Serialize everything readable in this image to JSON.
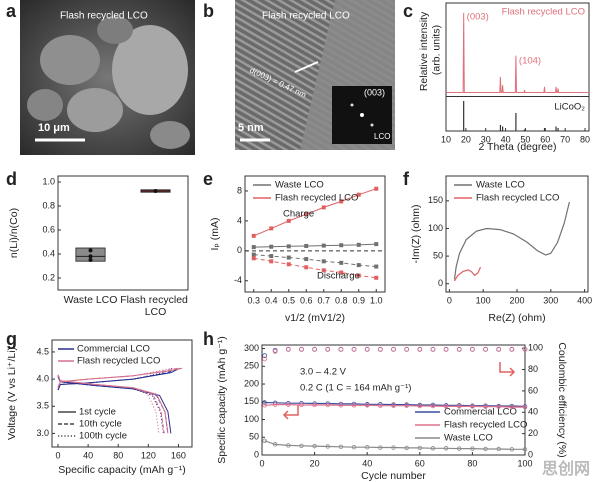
{
  "panel_labels": [
    "a",
    "b",
    "c",
    "d",
    "e",
    "f",
    "g",
    "h"
  ],
  "images": [
    {
      "caption": "Flash recycled LCO",
      "scale_bar": "10 μm"
    },
    {
      "caption": "Flash recycled LCO",
      "annotation": "d(003) = 0.47 nm",
      "inset_label": "(003)",
      "inset_caption": "LCO",
      "scale_bar": "5 nm"
    }
  ],
  "watermark": "思创网",
  "chart_data": [
    {
      "type": "spectrum",
      "xlabel": "2 Theta (degree)",
      "ylabel": "Relative intensity (arb. units)",
      "x": [
        10,
        18.6,
        18.9,
        19.2,
        37.1,
        37.4,
        37.7,
        38.2,
        38.5,
        38.8,
        44.9,
        45.2,
        45.5,
        49.2,
        49.5,
        49.8,
        59.3,
        59.6,
        59.9,
        65.1,
        65.4,
        65.7,
        66.1,
        66.4,
        66.7,
        82
      ],
      "series": [
        {
          "name": "Flash recycled LCO",
          "color": "#e0707a",
          "values": [
            0.03,
            0.03,
            1.0,
            0.03,
            0.03,
            0.22,
            0.03,
            0.03,
            0.12,
            0.03,
            0.03,
            0.48,
            0.03,
            0.03,
            0.06,
            0.03,
            0.03,
            0.1,
            0.03,
            0.03,
            0.1,
            0.03,
            0.03,
            0.08,
            0.03,
            0.03
          ]
        }
      ],
      "peak_labels": [
        {
          "label": "(003)",
          "x": 18.9
        },
        {
          "label": "(104)",
          "x": 45.2
        }
      ],
      "reference": {
        "name": "LiCoO₂",
        "color": "#333333",
        "x": [
          18.9,
          37.4,
          38.5,
          45.2,
          49.5,
          59.6,
          65.4,
          66.4
        ],
        "values": [
          1.0,
          0.2,
          0.15,
          0.6,
          0.05,
          0.1,
          0.15,
          0.1
        ],
        "ylim": [
          0,
          1.1
        ]
      },
      "xlim": [
        10,
        82
      ],
      "xticks": [
        10,
        20,
        30,
        40,
        50,
        60,
        70,
        80
      ],
      "ylim": [
        0,
        1.12
      ]
    },
    {
      "type": "box",
      "ylabel": "n(Li)/n(Co)",
      "categories": [
        "Waste LCO",
        "Flash recycled LCO"
      ],
      "boxes": [
        {
          "q1": 0.34,
          "median": 0.38,
          "q3": 0.45,
          "points": [
            0.35,
            0.38,
            0.43
          ],
          "color": "#8a8a8a"
        },
        {
          "q1": 0.915,
          "median": 0.925,
          "q3": 0.935,
          "points": [
            0.925
          ],
          "color": "#b03030"
        }
      ],
      "ylim": [
        0.1,
        1.05
      ],
      "yticks": [
        0.2,
        0.4,
        0.6,
        0.8,
        {
          "value": 1,
          "label": "1.0"
        }
      ]
    },
    {
      "type": "line",
      "xlabel": "v1/2 (mV1/2)",
      "ylabel": "Iₚ (mA)",
      "charge_label": "Charge",
      "discharge_label": "Discharge",
      "zero_line": true,
      "x": [
        0.3,
        0.4,
        0.5,
        0.6,
        0.7,
        0.8,
        0.9,
        1.0
      ],
      "series": [
        {
          "name": "Waste LCO",
          "color": "#707070",
          "charge": [
            0.5,
            0.55,
            0.6,
            0.65,
            0.7,
            0.75,
            0.8,
            0.9
          ],
          "discharge": [
            -0.5,
            -0.7,
            -0.9,
            -1.1,
            -1.4,
            -1.6,
            -1.9,
            -2.1
          ]
        },
        {
          "name": "Flash recycled LCO",
          "color": "#e06060",
          "charge": [
            2.0,
            3.0,
            4.0,
            4.9,
            5.8,
            6.6,
            7.5,
            8.3
          ],
          "discharge": [
            -1.0,
            -1.4,
            -1.8,
            -2.2,
            -2.6,
            -2.9,
            -3.3,
            -3.6
          ]
        }
      ],
      "xlim": [
        0.25,
        1.05
      ],
      "xticks": [
        0.3,
        0.4,
        0.5,
        0.6,
        0.7,
        0.8,
        0.9,
        {
          "value": 1,
          "label": "1.0"
        }
      ],
      "ylim": [
        -5.5,
        10
      ],
      "yticks": [
        -4,
        0,
        4,
        8
      ]
    },
    {
      "type": "line",
      "xlabel": "Re(Z) (ohm)",
      "ylabel": "-Im(Z) (ohm)",
      "series": [
        {
          "name": "Waste LCO",
          "color": "#707070",
          "x": [
            15,
            20,
            30,
            50,
            80,
            110,
            150,
            190,
            230,
            260,
            285,
            300,
            320,
            340,
            355
          ],
          "values": [
            8,
            30,
            55,
            80,
            95,
            100,
            98,
            90,
            75,
            60,
            52,
            55,
            75,
            110,
            148
          ]
        },
        {
          "name": "Flash recycled LCO",
          "color": "#e06060",
          "x": [
            15,
            25,
            40,
            55,
            65,
            75,
            85,
            92
          ],
          "values": [
            5,
            15,
            22,
            25,
            22,
            15,
            20,
            30
          ]
        }
      ],
      "xlim": [
        -10,
        410
      ],
      "xticks": [
        0,
        100,
        200,
        300,
        400
      ],
      "ylim": [
        -15,
        195
      ],
      "yticks": [
        0,
        50,
        100,
        150
      ]
    },
    {
      "type": "curves",
      "xlabel": "Specific capacity (mAh g⁻¹)",
      "ylabel": "Voltage (V vs Li⁺/Li)",
      "series": [
        {
          "name": "Commercial LCO",
          "color": "#2b2f8f",
          "cycles": [
            {
              "charge_x": [
                0,
                3,
                40,
                100,
                150,
                162
              ],
              "charge": [
                3.8,
                3.9,
                3.93,
                4.0,
                4.12,
                4.2
              ],
              "discharge_x": [
                0,
                3,
                50,
                100,
                135,
                146,
                150
              ],
              "discharge": [
                4.05,
                3.95,
                3.88,
                3.82,
                3.7,
                3.4,
                3.0
              ]
            },
            {
              "charge_x": [
                0,
                3,
                40,
                100,
                146,
                158
              ],
              "charge": [
                3.8,
                3.9,
                3.93,
                4.0,
                4.12,
                4.2
              ],
              "discharge_x": [
                0,
                3,
                50,
                100,
                131,
                142,
                146
              ],
              "discharge": [
                4.05,
                3.95,
                3.88,
                3.82,
                3.7,
                3.4,
                3.0
              ]
            },
            {
              "charge_x": [
                0,
                3,
                40,
                100,
                140,
                152
              ],
              "charge": [
                3.8,
                3.9,
                3.93,
                4.0,
                4.12,
                4.2
              ],
              "discharge_x": [
                0,
                3,
                50,
                100,
                125,
                136,
                140
              ],
              "discharge": [
                4.05,
                3.95,
                3.88,
                3.82,
                3.7,
                3.4,
                3.0
              ]
            }
          ]
        },
        {
          "name": "Flash recycled LCO",
          "color": "#d4708c",
          "cycles": [
            {
              "charge_x": [
                0,
                3,
                40,
                100,
                146,
                165
              ],
              "charge": [
                3.85,
                3.95,
                4.0,
                4.06,
                4.15,
                4.2
              ],
              "discharge_x": [
                0,
                3,
                50,
                100,
                131,
                142,
                146
              ],
              "discharge": [
                4.08,
                3.97,
                3.9,
                3.84,
                3.72,
                3.4,
                3.0
              ]
            },
            {
              "charge_x": [
                0,
                3,
                40,
                100,
                141,
                160
              ],
              "charge": [
                3.85,
                3.95,
                4.0,
                4.06,
                4.15,
                4.2
              ],
              "discharge_x": [
                0,
                3,
                50,
                100,
                126,
                137,
                141
              ],
              "discharge": [
                4.08,
                3.97,
                3.9,
                3.84,
                3.72,
                3.4,
                3.0
              ]
            },
            {
              "charge_x": [
                0,
                3,
                40,
                100,
                134,
                152
              ],
              "charge": [
                3.85,
                3.95,
                4.0,
                4.06,
                4.15,
                4.2
              ],
              "discharge_x": [
                0,
                3,
                50,
                100,
                119,
                130,
                134
              ],
              "discharge": [
                4.08,
                3.97,
                3.9,
                3.84,
                3.72,
                3.4,
                3.0
              ]
            }
          ]
        }
      ],
      "cycle_labels": [
        "1st cycle",
        "10th cycle",
        "100th cycle"
      ],
      "cycle_styles": [
        "solid",
        "dashed",
        "dotted"
      ],
      "xlim": [
        -8,
        178
      ],
      "xticks": [
        0,
        40,
        80,
        120,
        160
      ],
      "ylim": [
        2.75,
        4.72
      ],
      "yticks": [
        {
          "value": 3,
          "label": "3.0"
        },
        3.5,
        {
          "value": 4,
          "label": "4.0"
        },
        4.5
      ]
    },
    {
      "type": "cycling",
      "xlabel": "Cycle number",
      "ylabel": "Specific capacity (mAh g⁻¹)",
      "y2label": "Coulombic efficiency (%)",
      "annotations": [
        "3.0 – 4.2 V",
        "0.2 C (1 C = 164 mAh g⁻¹)"
      ],
      "x": [
        1,
        5,
        10,
        15,
        20,
        25,
        30,
        35,
        40,
        45,
        50,
        55,
        60,
        65,
        70,
        75,
        80,
        85,
        90,
        95,
        100
      ],
      "series": [
        {
          "name": "Commercial LCO",
          "color": "#3b4fa0",
          "values": [
            148,
            147,
            146,
            146,
            145,
            145,
            144,
            144,
            143,
            143,
            142,
            142,
            141,
            141,
            140,
            140,
            139,
            139,
            138,
            138,
            137
          ],
          "efficiency": [
            93,
            98,
            99,
            99,
            99,
            99,
            99,
            99,
            99,
            99,
            99,
            99,
            99,
            99,
            99,
            99,
            99,
            99,
            99,
            99,
            99
          ]
        },
        {
          "name": "Flash recycled LCO",
          "color": "#e0708c",
          "values": [
            140,
            142,
            142,
            141,
            141,
            141,
            140,
            140,
            140,
            139,
            139,
            139,
            138,
            138,
            137,
            137,
            137,
            136,
            136,
            135,
            135
          ],
          "efficiency": [
            90,
            97,
            98.8,
            98.8,
            98.8,
            98.8,
            98.8,
            98.8,
            98.8,
            98.8,
            98.8,
            98.8,
            98.8,
            98.8,
            98.8,
            98.8,
            98.8,
            98.8,
            98.8,
            98.8,
            98.8
          ]
        },
        {
          "name": "Waste LCO",
          "color": "#8a8a8a",
          "values": [
            40,
            30,
            27,
            26,
            25,
            24,
            23,
            22,
            22,
            21,
            21,
            20,
            20,
            19,
            19,
            18,
            18,
            17,
            17,
            16,
            16
          ]
        }
      ],
      "xlim": [
        0,
        100
      ],
      "xticks": [
        0,
        20,
        40,
        60,
        80,
        100
      ],
      "ylim": [
        0,
        310
      ],
      "yticks": [
        0,
        50,
        100,
        150,
        200,
        250,
        300
      ],
      "y2lim": [
        0,
        103
      ],
      "y2ticks": [
        0,
        20,
        40,
        60,
        80,
        100
      ]
    }
  ]
}
